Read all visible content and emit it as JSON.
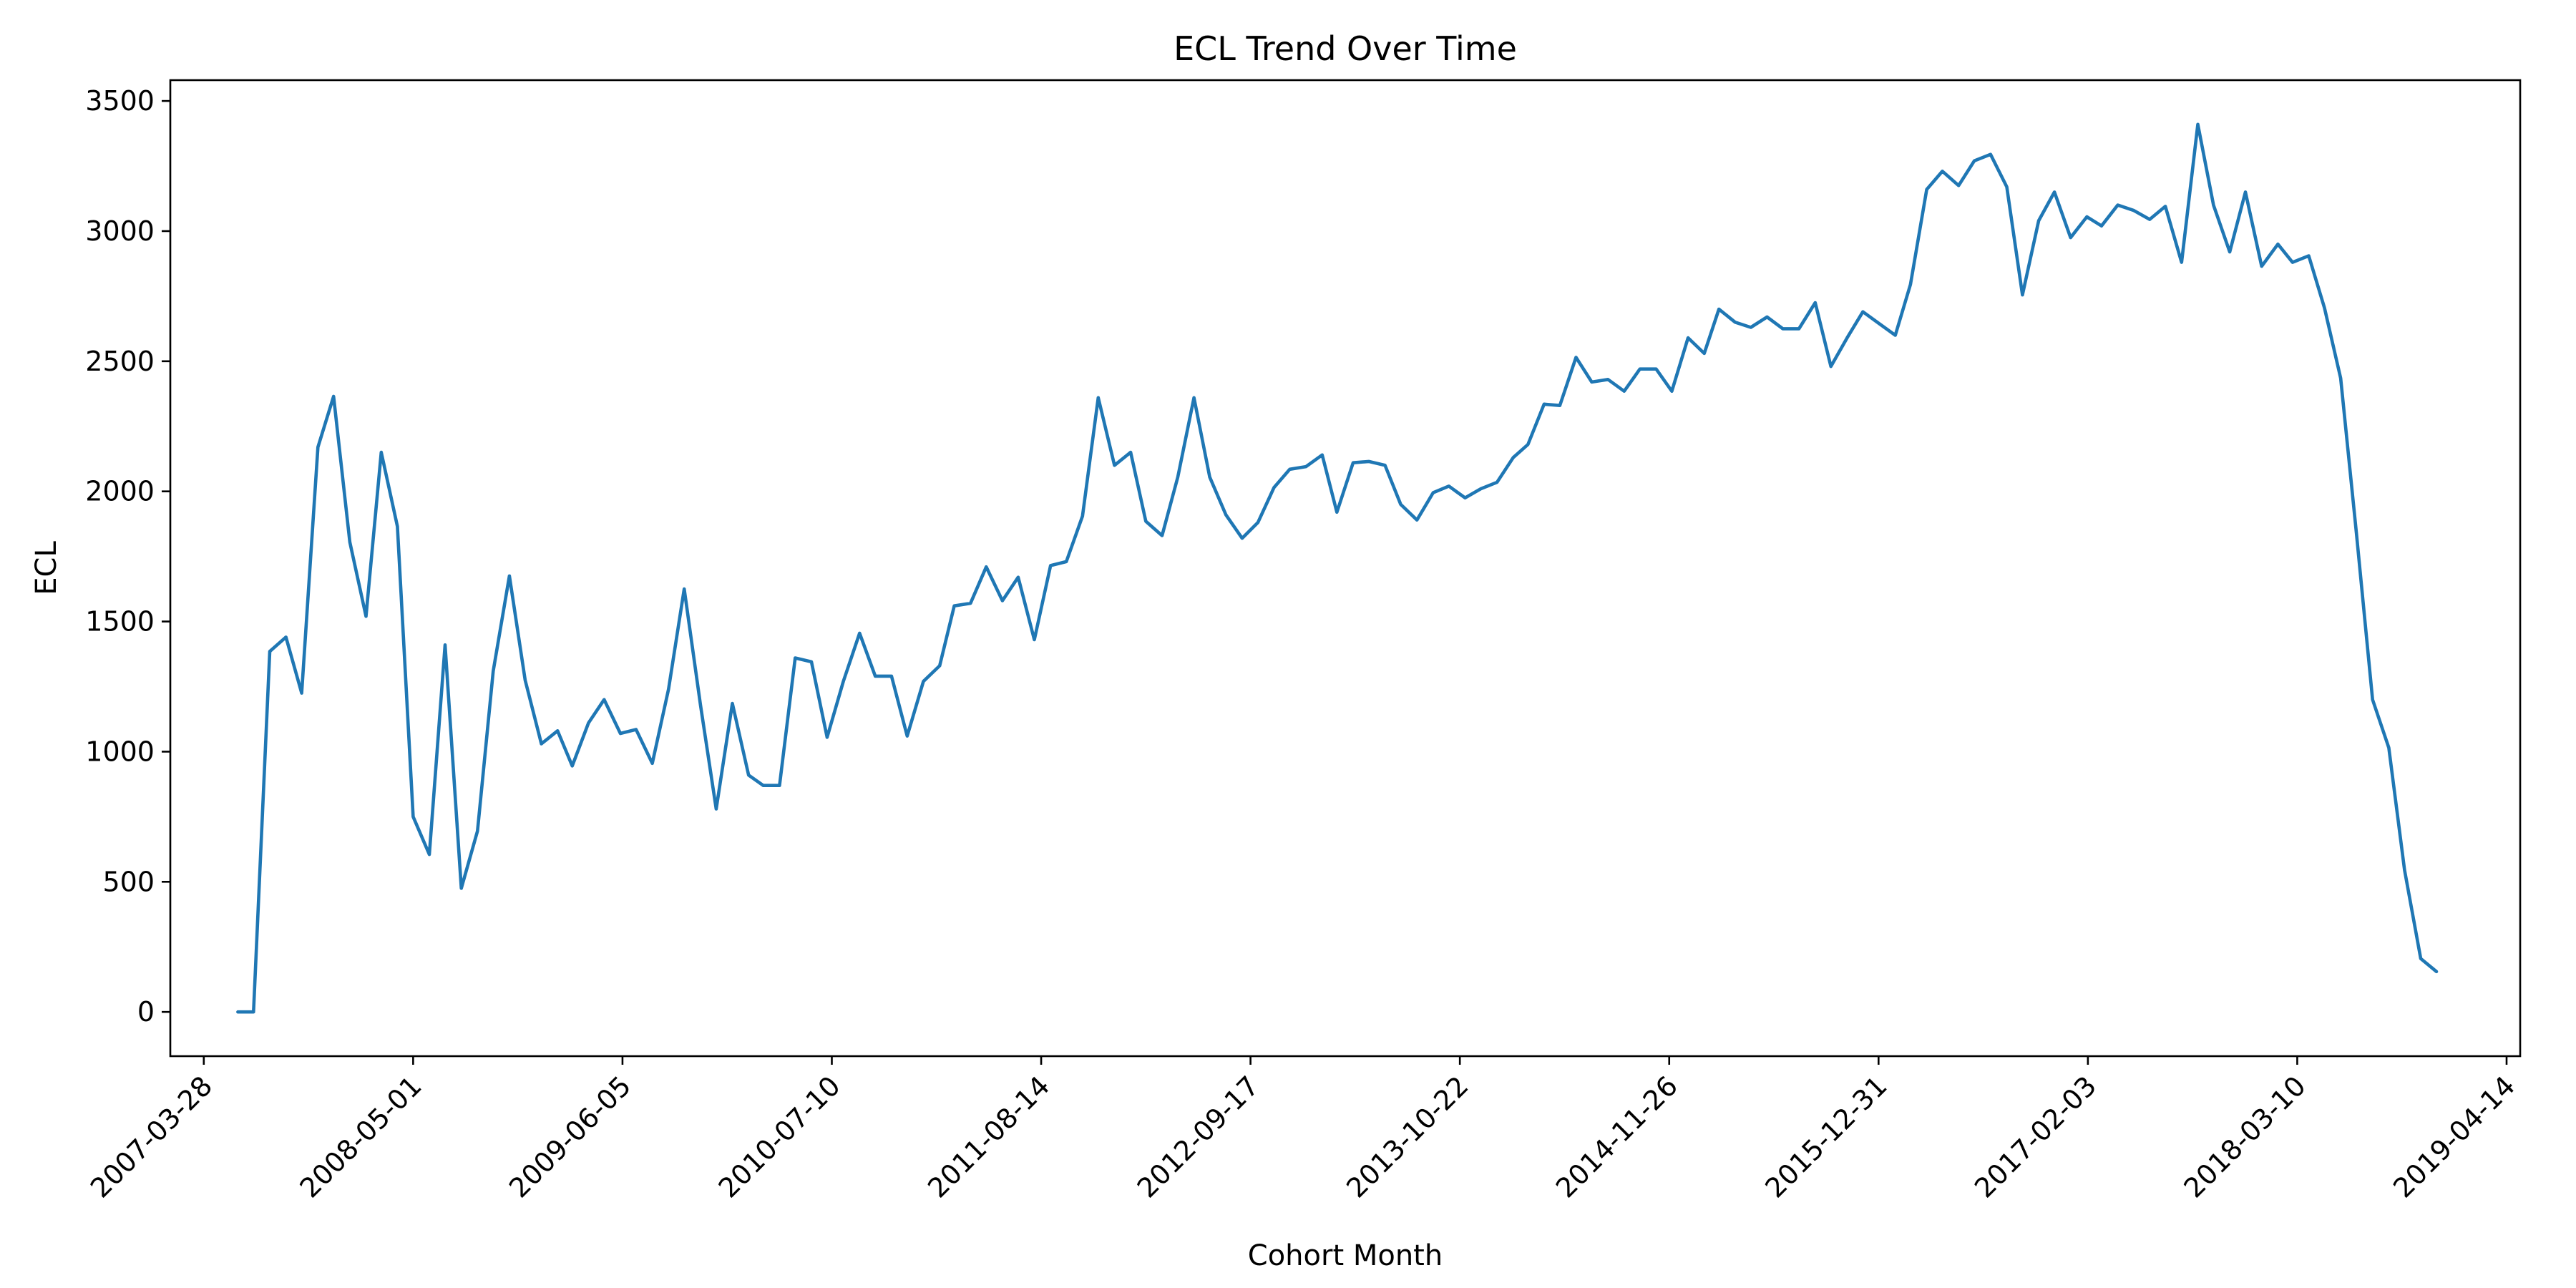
{
  "chart_data": {
    "type": "line",
    "title": "ECL Trend Over Time",
    "xlabel": "Cohort Month",
    "ylabel": "ECL",
    "grid": false,
    "legend": "none",
    "line_color": "#1f77b4",
    "xlim": [
      "2007-01-23",
      "2019-05-10"
    ],
    "ylim": [
      -170,
      3580
    ],
    "x_ticks": [
      "2007-03-28",
      "2008-05-01",
      "2009-06-05",
      "2010-07-10",
      "2011-08-14",
      "2012-09-17",
      "2013-10-22",
      "2014-11-26",
      "2015-12-31",
      "2017-02-03",
      "2018-03-10",
      "2019-04-14"
    ],
    "y_ticks": [
      0,
      500,
      1000,
      1500,
      2000,
      2500,
      3000,
      3500
    ],
    "series": [
      {
        "x": [
          "2007-06-01",
          "2007-07-01",
          "2007-08-01",
          "2007-09-01",
          "2007-10-01",
          "2007-11-01",
          "2007-12-01",
          "2008-01-01",
          "2008-02-01",
          "2008-03-01",
          "2008-04-01",
          "2008-05-01",
          "2008-06-01",
          "2008-07-01",
          "2008-08-01",
          "2008-09-01",
          "2008-10-01",
          "2008-11-01",
          "2008-12-01",
          "2009-01-01",
          "2009-02-01",
          "2009-03-01",
          "2009-04-01",
          "2009-05-01",
          "2009-06-01",
          "2009-07-01",
          "2009-08-01",
          "2009-09-01",
          "2009-10-01",
          "2009-11-01",
          "2009-12-01",
          "2010-01-01",
          "2010-02-01",
          "2010-03-01",
          "2010-04-01",
          "2010-05-01",
          "2010-06-01",
          "2010-07-01",
          "2010-08-01",
          "2010-09-01",
          "2010-10-01",
          "2010-11-01",
          "2010-12-01",
          "2011-01-01",
          "2011-02-01",
          "2011-03-01",
          "2011-04-01",
          "2011-05-01",
          "2011-06-01",
          "2011-07-01",
          "2011-08-01",
          "2011-09-01",
          "2011-10-01",
          "2011-11-01",
          "2011-12-01",
          "2012-01-01",
          "2012-02-01",
          "2012-03-01",
          "2012-04-01",
          "2012-05-01",
          "2012-06-01",
          "2012-07-01",
          "2012-08-01",
          "2012-09-01",
          "2012-10-01",
          "2012-11-01",
          "2012-12-01",
          "2013-01-01",
          "2013-02-01",
          "2013-03-01",
          "2013-04-01",
          "2013-05-01",
          "2013-06-01",
          "2013-07-01",
          "2013-08-01",
          "2013-09-01",
          "2013-10-01",
          "2013-11-01",
          "2013-12-01",
          "2014-01-01",
          "2014-02-01",
          "2014-03-01",
          "2014-04-01",
          "2014-05-01",
          "2014-06-01",
          "2014-07-01",
          "2014-08-01",
          "2014-09-01",
          "2014-10-01",
          "2014-11-01",
          "2014-12-01",
          "2015-01-01",
          "2015-02-01",
          "2015-03-01",
          "2015-04-01",
          "2015-05-01",
          "2015-06-01",
          "2015-07-01",
          "2015-08-01",
          "2015-09-01",
          "2015-10-01",
          "2015-11-01",
          "2015-12-01",
          "2016-01-01",
          "2016-02-01",
          "2016-03-01",
          "2016-04-01",
          "2016-05-01",
          "2016-06-01",
          "2016-07-01",
          "2016-08-01",
          "2016-09-01",
          "2016-10-01",
          "2016-11-01",
          "2016-12-01",
          "2017-01-01",
          "2017-02-01",
          "2017-03-01",
          "2017-04-01",
          "2017-05-01",
          "2017-06-01",
          "2017-07-01",
          "2017-08-01",
          "2017-09-01",
          "2017-10-01",
          "2017-11-01",
          "2017-12-01",
          "2018-01-01",
          "2018-02-01",
          "2018-03-01",
          "2018-04-01",
          "2018-05-01",
          "2018-06-01",
          "2018-07-01",
          "2018-08-01",
          "2018-09-01",
          "2018-10-01",
          "2018-11-01",
          "2018-12-01"
        ],
        "y": [
          0,
          0,
          1385,
          1440,
          1225,
          2170,
          2365,
          1805,
          1520,
          2150,
          1865,
          750,
          605,
          1410,
          475,
          695,
          1310,
          1675,
          1275,
          1030,
          1080,
          945,
          1110,
          1200,
          1070,
          1085,
          955,
          1240,
          1625,
          1180,
          780,
          1185,
          910,
          870,
          870,
          1360,
          1345,
          1055,
          1270,
          1455,
          1290,
          1290,
          1060,
          1270,
          1330,
          1560,
          1570,
          1710,
          1580,
          1670,
          1430,
          1715,
          1730,
          1905,
          2360,
          2100,
          2150,
          1885,
          1830,
          2055,
          2360,
          2055,
          1910,
          1820,
          1880,
          2015,
          2085,
          2095,
          2140,
          1920,
          2110,
          2115,
          2100,
          1950,
          1890,
          1995,
          2020,
          1975,
          2010,
          2035,
          2130,
          2180,
          2335,
          2330,
          2515,
          2420,
          2430,
          2385,
          2470,
          2470,
          2385,
          2590,
          2530,
          2700,
          2650,
          2630,
          2670,
          2625,
          2625,
          2725,
          2480,
          2590,
          2690,
          2645,
          2600,
          2795,
          3160,
          3230,
          3175,
          3270,
          3295,
          3170,
          2755,
          3040,
          3150,
          2975,
          3055,
          3020,
          3100,
          3080,
          3045,
          3095,
          2880,
          3410,
          3100,
          2920,
          3150,
          2865,
          2950,
          2880,
          2905,
          2705,
          2435,
          1840,
          1200,
          1015,
          545,
          205,
          155
        ]
      }
    ]
  }
}
